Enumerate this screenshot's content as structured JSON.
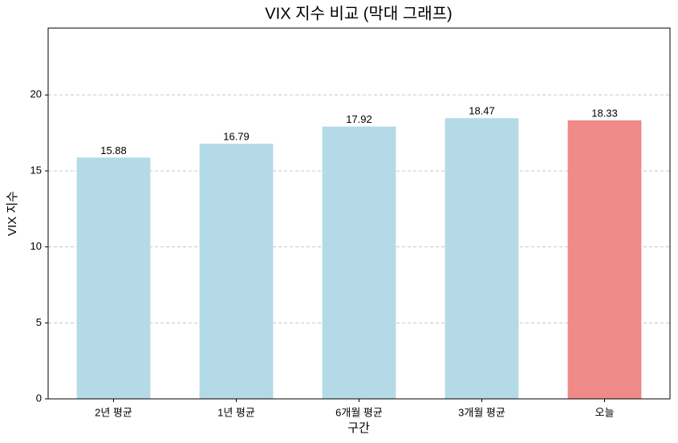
{
  "chart_data": {
    "type": "bar",
    "title": "VIX 지수 비교 (막대 그래프)",
    "x_label": "구간",
    "y_label": "VIX 지수",
    "categories": [
      "2년 평균",
      "1년 평균",
      "6개월 평균",
      "3개월 평균",
      "오늘"
    ],
    "values": [
      15.88,
      16.79,
      17.92,
      18.47,
      18.33
    ],
    "colors": [
      "#b3dae6",
      "#b3dae6",
      "#b3dae6",
      "#b3dae6",
      "#ef8a88"
    ],
    "ylim": [
      0,
      24.4
    ],
    "yticks": [
      0,
      5,
      10,
      15,
      20
    ],
    "grid": true
  }
}
